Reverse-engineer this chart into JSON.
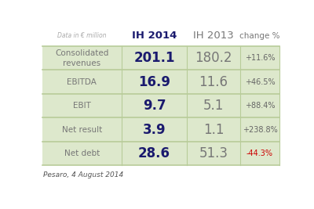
{
  "header_label": "Data in € million",
  "col_headers": [
    "IH 2014",
    "IH 2013",
    "change %"
  ],
  "rows": [
    {
      "label": "Consolidated\nrevenues",
      "ih2014": "201.1",
      "ih2013": "180.2",
      "change": "+11.6%",
      "change_color": "#666666"
    },
    {
      "label": "EBITDA",
      "ih2014": "16.9",
      "ih2013": "11.6",
      "change": "+46.5%",
      "change_color": "#666666"
    },
    {
      "label": "EBIT",
      "ih2014": "9.7",
      "ih2013": "5.1",
      "change": "+88.4%",
      "change_color": "#666666"
    },
    {
      "label": "Net result",
      "ih2014": "3.9",
      "ih2013": "1.1",
      "change": "+238.8%",
      "change_color": "#666666"
    },
    {
      "label": "Net debt",
      "ih2014": "28.6",
      "ih2013": "51.3",
      "change": "-44.3%",
      "change_color": "#cc0000"
    }
  ],
  "bg_color": "#ffffff",
  "table_bg": "#dde8cc",
  "grid_color": "#b8cc99",
  "header_text_color": "#1a1a6e",
  "value_color_2014": "#1a1a6e",
  "value_color_2013": "#777777",
  "label_color": "#777777",
  "footer_text": "Pesaro, 4 August 2014",
  "fig_width": 4.0,
  "fig_height": 2.67
}
